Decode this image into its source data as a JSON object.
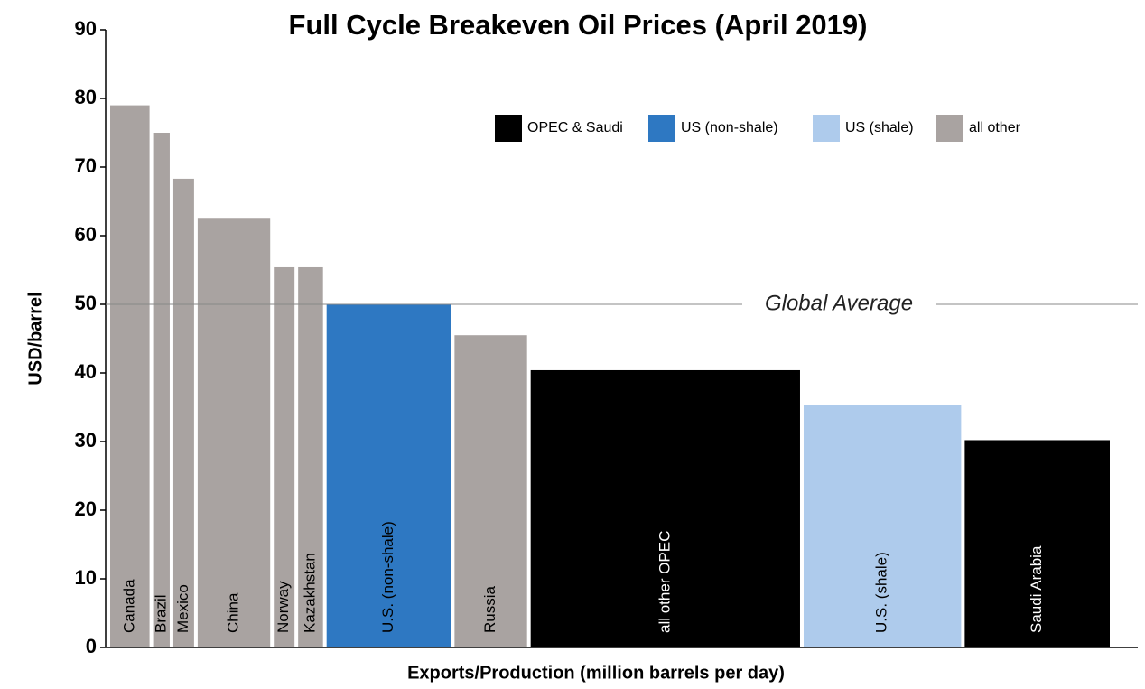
{
  "chart_data": {
    "type": "variable-width-bar",
    "title": "Full Cycle Breakeven Oil Prices (April 2019)",
    "x_label": "Exports/Production (million barrels per day)",
    "y_label": "USD/barrel",
    "categories": [
      "Canada",
      "Brazil",
      "Mexico",
      "China",
      "Norway",
      "Kazakhstan",
      "U.S. (non-shale)",
      "Russia",
      "all other OPEC",
      "U.S. (shale)",
      "Saudi Arabia"
    ],
    "values": [
      79,
      75,
      68.3,
      62.6,
      55.4,
      55.4,
      50,
      45.5,
      40.4,
      35.3,
      30.2
    ],
    "widths": [
      1.9,
      0.8,
      1.0,
      3.5,
      1.0,
      1.2,
      6.0,
      3.5,
      13.0,
      7.6,
      7.0
    ],
    "colors": [
      "#a9a3a1",
      "#a9a3a1",
      "#a9a3a1",
      "#a9a3a1",
      "#a9a3a1",
      "#a9a3a1",
      "#2e78c2",
      "#a9a3a1",
      "#000000",
      "#aecbec",
      "#000000"
    ],
    "legend": [
      {
        "name": "OPEC & Saudi",
        "color": "#000000"
      },
      {
        "name": "US (non-shale)",
        "color": "#2e78c2"
      },
      {
        "name": "US (shale)",
        "color": "#aecbec"
      },
      {
        "name": "all other",
        "color": "#a9a3a1"
      }
    ],
    "reference_line": {
      "value": 50,
      "label": "Global Average"
    },
    "ylim": [
      0,
      90
    ],
    "yticks": [
      0,
      10,
      20,
      30,
      40,
      50,
      60,
      70,
      80,
      90
    ]
  }
}
